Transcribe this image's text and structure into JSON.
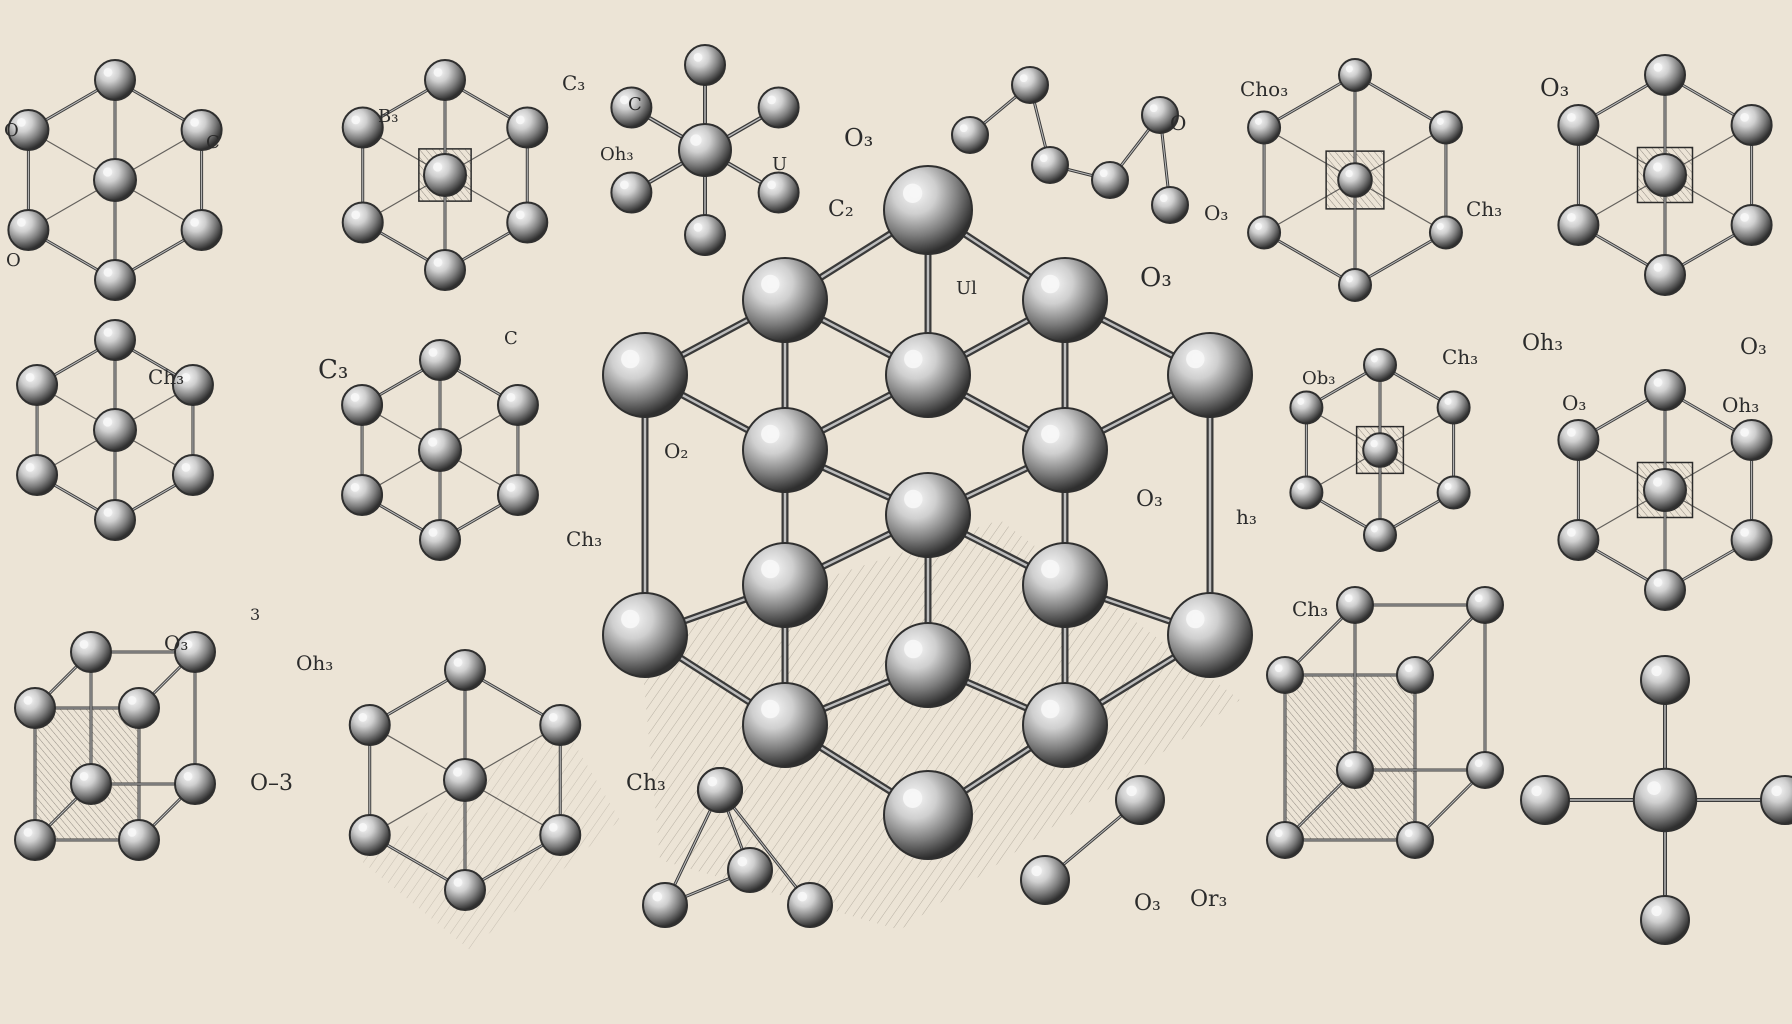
{
  "palette": {
    "paper": "#ece4d6",
    "ink": "#2b2b2b",
    "bond": "#3a3a3a",
    "atom_highlight": "#f7f7f7",
    "atom_mid": "#a9a9a9",
    "atom_shadow": "#2f2f2f",
    "hatch": "#8c8478"
  },
  "labels": [
    {
      "id": "lbl-o-left",
      "text": "O"
    },
    {
      "id": "lbl-c-top-right",
      "text": "C"
    },
    {
      "id": "lbl-o-left-lower",
      "text": "O"
    },
    {
      "id": "lbl-c-small",
      "text": "C"
    },
    {
      "id": "lbl-b3",
      "text": "B₃"
    },
    {
      "id": "lbl-c3-top",
      "text": "C₃"
    },
    {
      "id": "lbl-c-mid",
      "text": "C"
    },
    {
      "id": "lbl-oh3-top",
      "text": "Oh₃"
    },
    {
      "id": "lbl-o3-top",
      "text": "O₃"
    },
    {
      "id": "lbl-u",
      "text": "U"
    },
    {
      "id": "lbl-c2",
      "text": "C₂"
    },
    {
      "id": "lbl-o-top-right",
      "text": "O"
    },
    {
      "id": "lbl-o3-center-right",
      "text": "O₃"
    },
    {
      "id": "lbl-ul",
      "text": "Ul"
    },
    {
      "id": "lbl-cho",
      "text": "Cho₃"
    },
    {
      "id": "lbl-o3-far-right",
      "text": "O₃"
    },
    {
      "id": "lbl-o3-right",
      "text": "O₃"
    },
    {
      "id": "lbl-ch3-right",
      "text": "Ch₃"
    },
    {
      "id": "lbl-ch3-left-mid",
      "text": "Ch₃"
    },
    {
      "id": "lbl-c3-left-mid",
      "text": "C₃"
    },
    {
      "id": "lbl-o2-center",
      "text": "O₂"
    },
    {
      "id": "lbl-o3-center",
      "text": "O₃"
    },
    {
      "id": "lbl-h3",
      "text": "h₃"
    },
    {
      "id": "lbl-ch3-mid-right",
      "text": "Ch₃"
    },
    {
      "id": "lbl-ob3-right",
      "text": "Ob₃"
    },
    {
      "id": "lbl-oh3-far-right",
      "text": "Oh₃"
    },
    {
      "id": "lbl-o3-far-right-mid",
      "text": "O₃"
    },
    {
      "id": "lbl-o3-right-mid",
      "text": "O₃"
    },
    {
      "id": "lbl-oh3-right-mid",
      "text": "Oh₃"
    },
    {
      "id": "lbl-ch3-mid-left",
      "text": "Ch₃"
    },
    {
      "id": "lbl-three",
      "text": "3"
    },
    {
      "id": "lbl-o3-bottom-left",
      "text": "O₃"
    },
    {
      "id": "lbl-oh3-bottom-left",
      "text": "Oh₃"
    },
    {
      "id": "lbl-o3-left-bottom",
      "text": "O–3"
    },
    {
      "id": "lbl-ch3-bottom-center",
      "text": "Ch₃"
    },
    {
      "id": "lbl-ch3-bottom-right",
      "text": "Ch₃"
    },
    {
      "id": "lbl-o3-bottom",
      "text": "O₃"
    },
    {
      "id": "lbl-or3-bottom",
      "text": "Or₃"
    }
  ],
  "molecules": [
    {
      "id": "hexagon-top-left",
      "shape": "hexagon"
    },
    {
      "id": "cube-top-second",
      "shape": "cube"
    },
    {
      "id": "cross-top-third",
      "shape": "cross"
    },
    {
      "id": "chain-top-fourth",
      "shape": "chain"
    },
    {
      "id": "hexagon-top-fifth",
      "shape": "hexagon"
    },
    {
      "id": "hexagon-top-right",
      "shape": "hexagon"
    },
    {
      "id": "hexagon-mid-left",
      "shape": "hexagon"
    },
    {
      "id": "hexagon-mid-second",
      "shape": "hexagon"
    },
    {
      "id": "hexagon-mid-fifth",
      "shape": "hexagon"
    },
    {
      "id": "hexagon-mid-right",
      "shape": "hexagon"
    },
    {
      "id": "cube-bottom-left",
      "shape": "cube"
    },
    {
      "id": "hexagon-bottom-second",
      "shape": "hexagon"
    },
    {
      "id": "triangle-bottom-center-left",
      "shape": "triangle"
    },
    {
      "id": "pair-bottom-center-right",
      "shape": "pair"
    },
    {
      "id": "cube-bottom-fifth",
      "shape": "cube"
    },
    {
      "id": "cross-bottom-right",
      "shape": "cross"
    }
  ],
  "central_lattice": {
    "id": "central-crystal-lattice",
    "shape": "lattice"
  }
}
